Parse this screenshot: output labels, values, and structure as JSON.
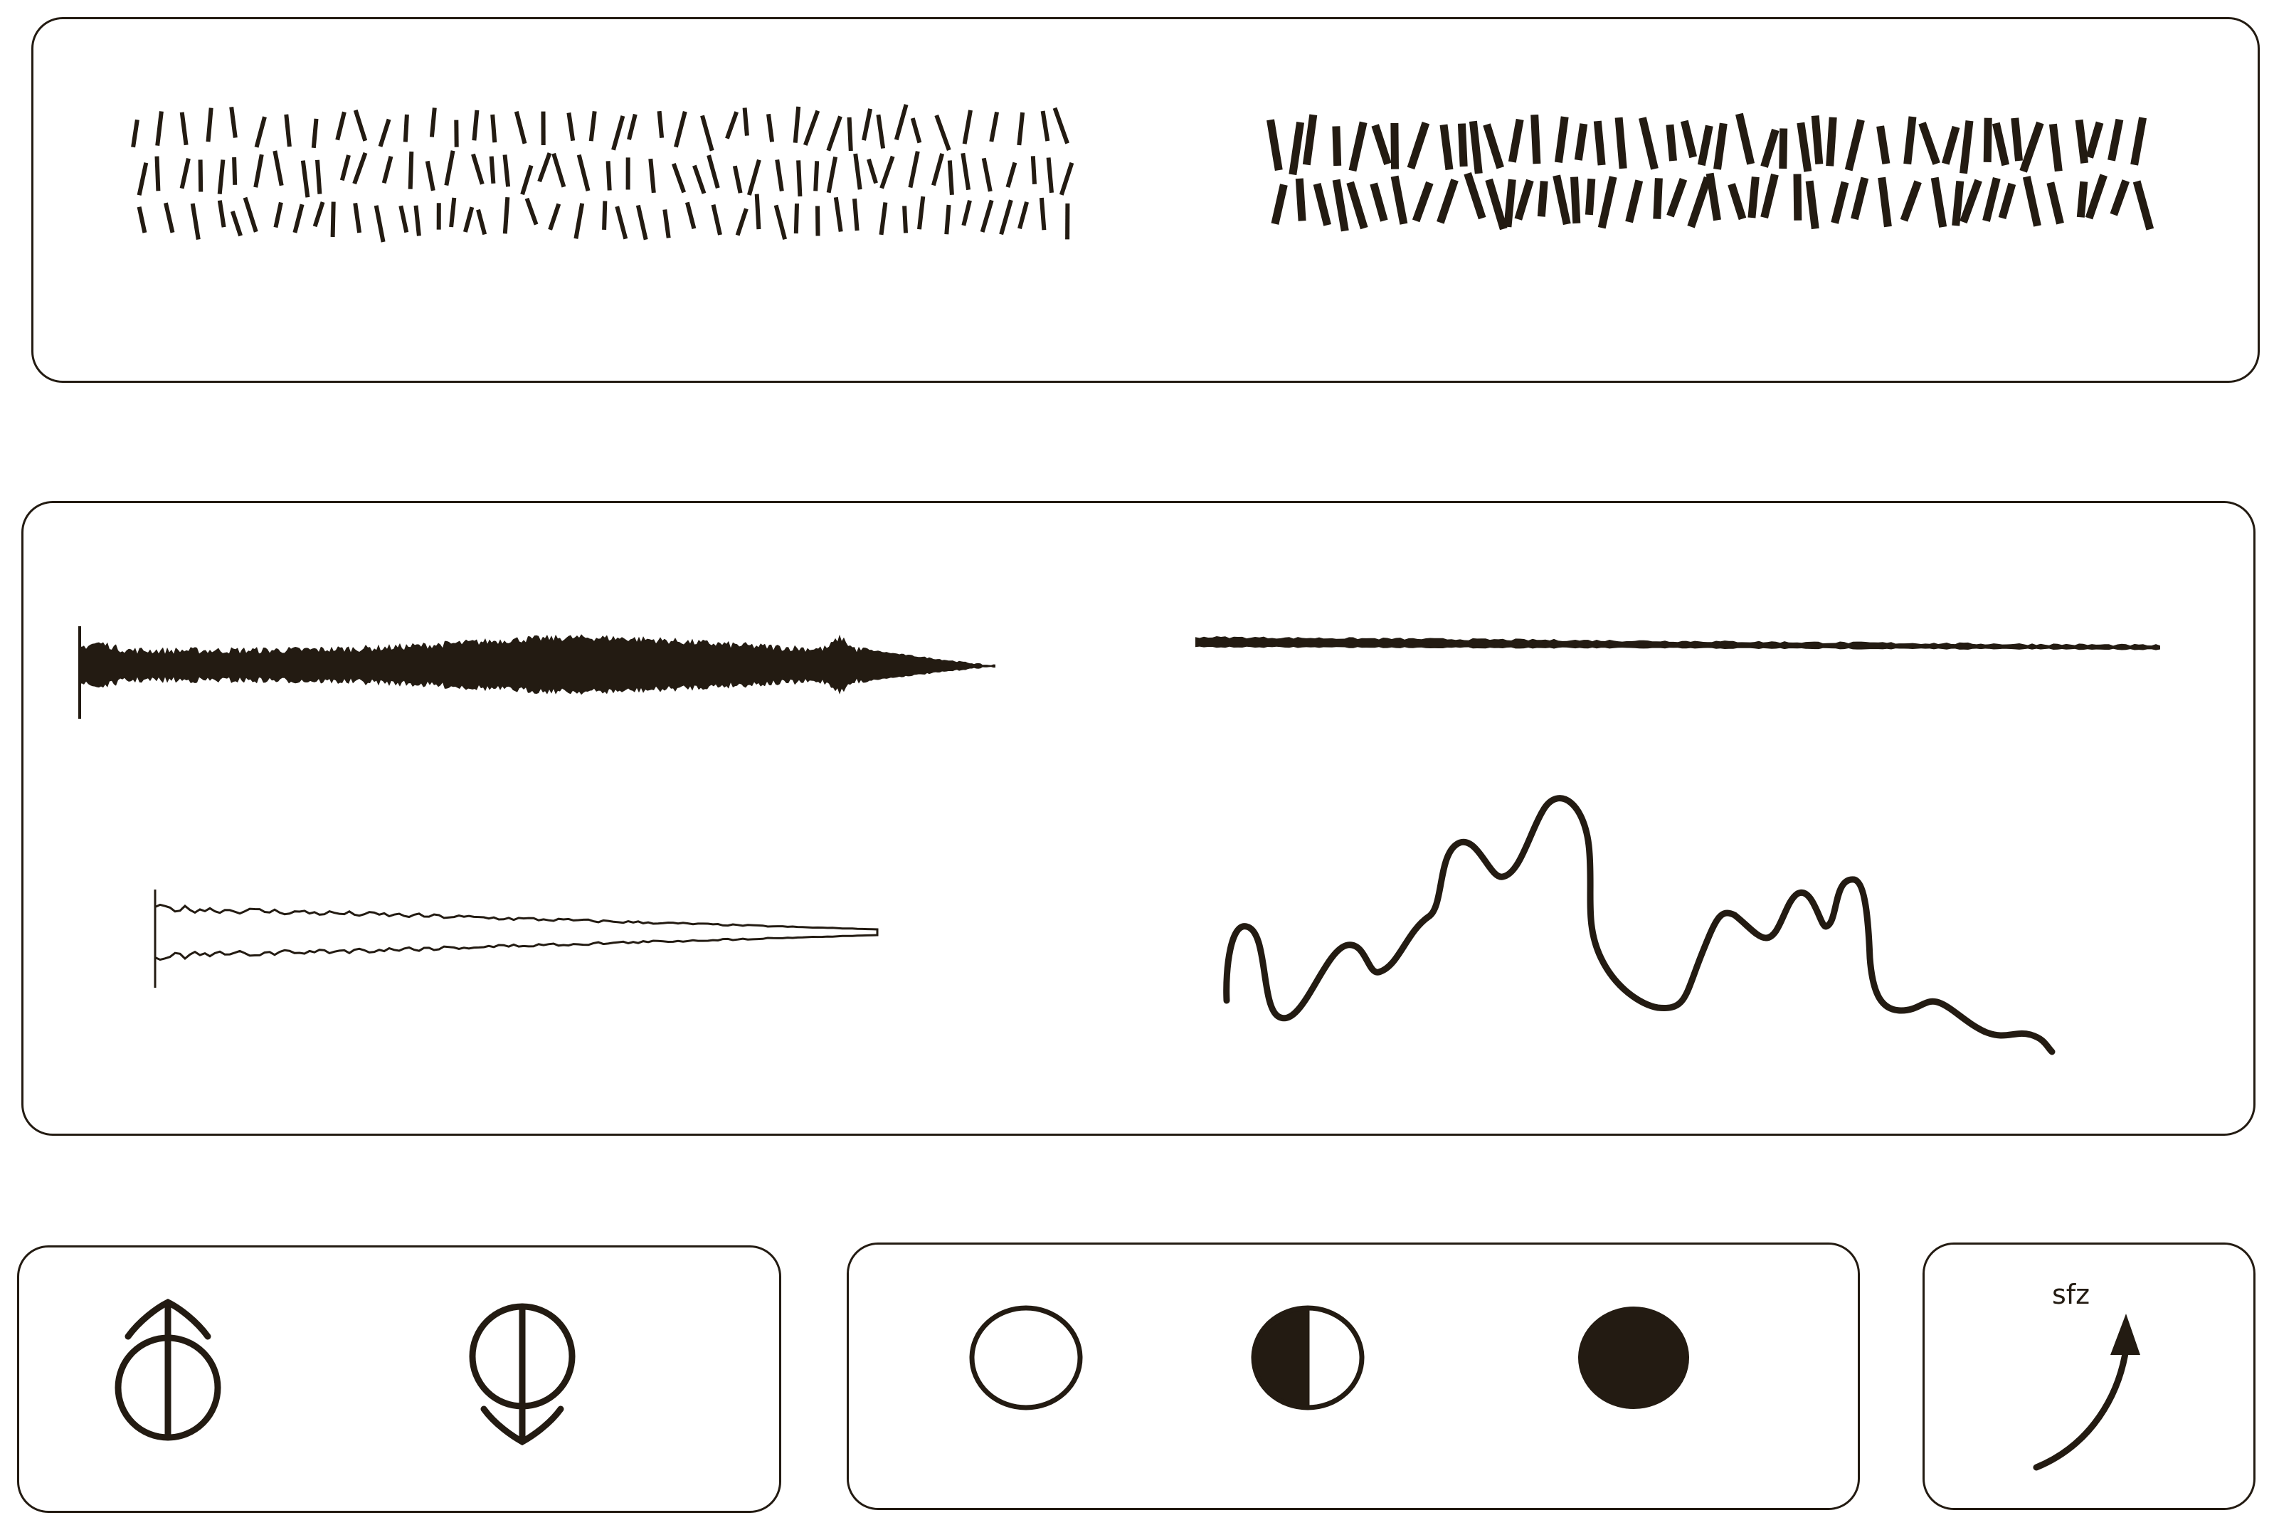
{
  "colors": {
    "ink": "#231b12",
    "background": "#ffffff"
  },
  "panels": {
    "top": {
      "items": [
        "thin-dash-texture",
        "thick-dash-texture"
      ]
    },
    "middle": {
      "items": [
        "dense-waveform",
        "long-tapering-line",
        "thin-waveform-outline",
        "wavy-curve-line"
      ]
    },
    "bottom_left": {
      "icons": [
        "circle-up-arrow-icon",
        "circle-down-arrow-icon"
      ]
    },
    "bottom_middle": {
      "icons": [
        "empty-circle-icon",
        "half-filled-circle-icon",
        "filled-circle-icon"
      ]
    },
    "bottom_right": {
      "label": "sfz",
      "icons": [
        "curved-up-arrow-icon"
      ]
    }
  }
}
